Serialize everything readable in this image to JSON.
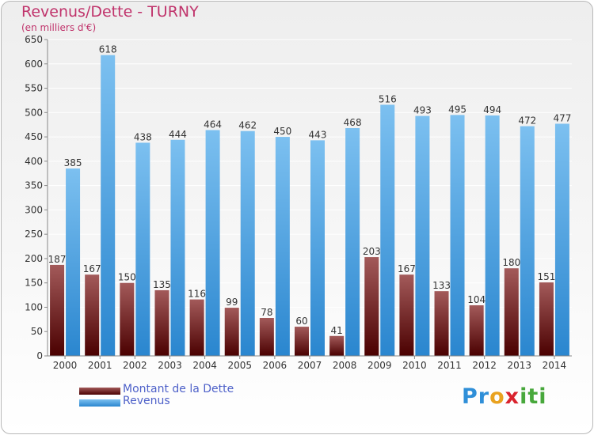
{
  "chart_data": {
    "type": "bar",
    "title": "Revenus/Dette - TURNY",
    "subtitle": "(en milliers d'€)",
    "categories": [
      "2000",
      "2001",
      "2002",
      "2003",
      "2004",
      "2005",
      "2006",
      "2007",
      "2008",
      "2009",
      "2010",
      "2011",
      "2012",
      "2013",
      "2014"
    ],
    "series": [
      {
        "name": "Montant de la Dette",
        "values": [
          187,
          167,
          150,
          135,
          116,
          99,
          78,
          60,
          41,
          203,
          167,
          133,
          104,
          180,
          151
        ]
      },
      {
        "name": "Revenus",
        "values": [
          385,
          618,
          438,
          444,
          464,
          462,
          450,
          443,
          468,
          516,
          493,
          495,
          494,
          472,
          477
        ]
      }
    ],
    "ylim": [
      0,
      650
    ],
    "yticks": [
      0,
      50,
      100,
      150,
      200,
      250,
      300,
      350,
      400,
      450,
      500,
      550,
      600,
      650
    ],
    "grid": true,
    "legend_position": "bottom-left"
  },
  "colors": {
    "debt_top": "#a35a5a",
    "debt_bottom": "#4a0000",
    "rev_top": "#7cc0f0",
    "rev_bottom": "#2a86cf",
    "title": "#c0336b",
    "legend_text": "#4e61c9"
  },
  "logo": {
    "p1": "Pr",
    "p2": "o",
    "p3": "x",
    "p4": "iti"
  }
}
